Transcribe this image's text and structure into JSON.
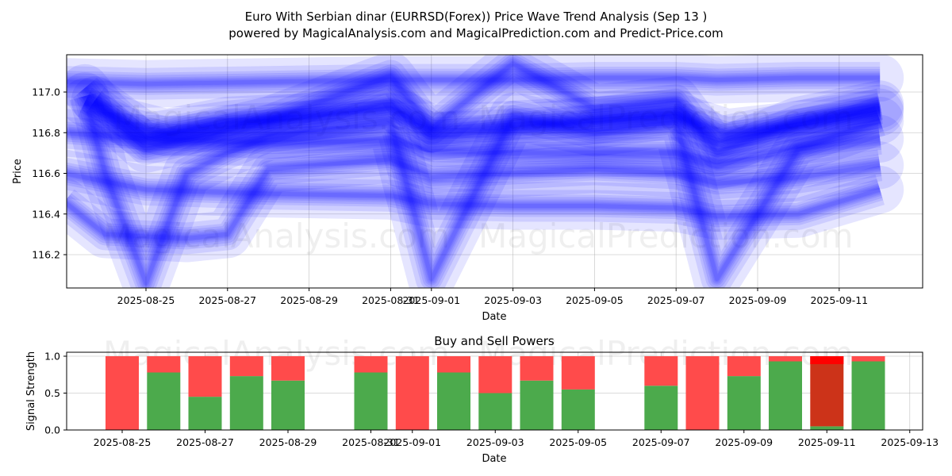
{
  "title": "Euro With Serbian dinar (EURRSD(Forex)) Price Wave Trend Analysis (Sep 13 )",
  "subtitle": "powered by MagicalAnalysis.com and MagicalPrediction.com and Predict-Price.com",
  "watermarks": [
    "MagicalAnalysis.com",
    "MagicalPrediction.com"
  ],
  "colors": {
    "wave": "#0000ff",
    "buy": "#4caa4c",
    "sell": "#ff4b4b",
    "sell_strong": "#ff0000",
    "buy_strong": "#cc3319"
  },
  "chart_data": [
    {
      "type": "line",
      "xlabel": "Date",
      "ylabel": "Price",
      "ylim": [
        116.04,
        117.18
      ],
      "xlim": [
        "2025-08-23",
        "2025-09-13"
      ],
      "grid": true,
      "x_ticks": [
        "2025-08-25",
        "2025-08-27",
        "2025-08-29",
        "2025-08-31",
        "2025-09-01",
        "2025-09-03",
        "2025-09-05",
        "2025-09-07",
        "2025-09-09",
        "2025-09-11"
      ],
      "y_ticks": [
        "116.2",
        "116.4",
        "116.6",
        "116.8",
        "117.0"
      ],
      "series": [
        {
          "x": [
            "2025-08-23T18",
            "2025-08-25",
            "2025-08-27",
            "2025-08-29",
            "2025-08-31",
            "2025-09-01",
            "2025-09-03",
            "2025-09-05",
            "2025-09-07",
            "2025-09-08T06",
            "2025-09-10",
            "2025-09-12"
          ],
          "values": [
            116.96,
            116.78,
            116.84,
            116.88,
            116.92,
            116.82,
            116.84,
            116.86,
            116.88,
            116.8,
            116.84,
            116.9
          ]
        },
        {
          "x": [
            "2025-08-23T12",
            "2025-08-24T12",
            "2025-08-25T12",
            "2025-08-27",
            "2025-08-29",
            "2025-08-31",
            "2025-09-01",
            "2025-09-03",
            "2025-09-05",
            "2025-09-07",
            "2025-09-08",
            "2025-09-10",
            "2025-09-12"
          ],
          "values": [
            116.95,
            116.85,
            116.8,
            116.86,
            116.88,
            116.94,
            116.78,
            116.82,
            116.86,
            116.9,
            116.76,
            116.84,
            116.92
          ]
        },
        {
          "x": [
            "2025-08-23",
            "2025-08-25",
            "2025-08-28",
            "2025-08-31",
            "2025-09-01",
            "2025-09-03",
            "2025-09-05",
            "2025-09-07",
            "2025-09-08",
            "2025-09-10",
            "2025-09-12"
          ],
          "values": [
            117.05,
            117.04,
            117.05,
            117.06,
            117.06,
            117.06,
            117.07,
            117.07,
            117.06,
            117.07,
            117.07
          ]
        },
        {
          "x": [
            "2025-08-23",
            "2025-08-25",
            "2025-08-28",
            "2025-08-31",
            "2025-09-01",
            "2025-09-03",
            "2025-09-05",
            "2025-09-07",
            "2025-09-08",
            "2025-09-10",
            "2025-09-12"
          ],
          "values": [
            116.8,
            116.77,
            116.75,
            116.76,
            116.71,
            116.7,
            116.7,
            116.7,
            116.64,
            116.72,
            116.77
          ]
        },
        {
          "x": [
            "2025-08-23",
            "2025-08-25",
            "2025-08-28",
            "2025-08-31",
            "2025-09-01",
            "2025-09-03",
            "2025-09-05",
            "2025-09-07",
            "2025-09-08",
            "2025-09-10",
            "2025-09-12"
          ],
          "values": [
            116.6,
            116.52,
            116.5,
            116.49,
            116.45,
            116.44,
            116.44,
            116.43,
            116.39,
            116.4,
            116.52
          ]
        },
        {
          "x": [
            "2025-08-23T12",
            "2025-08-24",
            "2025-08-25",
            "2025-08-26",
            "2025-08-27",
            "2025-08-28",
            "2025-08-31",
            "2025-09-01",
            "2025-09-03",
            "2025-09-05",
            "2025-09-07",
            "2025-09-08",
            "2025-09-10",
            "2025-09-12"
          ],
          "values": [
            116.98,
            116.6,
            116.06,
            116.6,
            116.7,
            116.78,
            116.85,
            116.08,
            116.88,
            116.8,
            116.85,
            116.08,
            116.72,
            116.86
          ]
        },
        {
          "x": [
            "2025-08-23",
            "2025-08-24",
            "2025-08-26",
            "2025-08-27",
            "2025-08-28",
            "2025-08-31",
            "2025-09-01",
            "2025-09-03",
            "2025-09-05",
            "2025-09-07",
            "2025-09-08",
            "2025-09-10",
            "2025-09-12"
          ],
          "values": [
            116.46,
            116.3,
            116.28,
            116.3,
            116.62,
            116.67,
            116.58,
            116.6,
            116.62,
            116.6,
            116.55,
            116.58,
            116.64
          ]
        },
        {
          "x": [
            "2025-08-23T12",
            "2025-08-24",
            "2025-08-25",
            "2025-08-28",
            "2025-08-31",
            "2025-09-01",
            "2025-09-03",
            "2025-09-05",
            "2025-09-07",
            "2025-09-08",
            "2025-09-10",
            "2025-09-12"
          ],
          "values": [
            117.02,
            116.9,
            116.72,
            116.86,
            117.08,
            116.82,
            117.14,
            116.92,
            116.96,
            116.7,
            116.86,
            116.94
          ]
        }
      ]
    },
    {
      "type": "bar",
      "title": "Buy and Sell Powers",
      "xlabel": "Date",
      "ylabel": "Signal Strength",
      "ylim": [
        0,
        1.05
      ],
      "grid": true,
      "x_ticks": [
        "2025-08-25",
        "2025-08-27",
        "2025-08-29",
        "2025-08-31",
        "2025-09-01",
        "2025-09-03",
        "2025-09-05",
        "2025-09-07",
        "2025-09-09",
        "2025-09-11",
        "2025-09-13"
      ],
      "y_ticks": [
        "0.0",
        "0.5",
        "1.0"
      ],
      "categories": [
        "2025-08-25",
        "2025-08-26",
        "2025-08-27",
        "2025-08-28",
        "2025-08-29",
        "2025-08-31",
        "2025-09-01",
        "2025-09-02",
        "2025-09-03",
        "2025-09-04",
        "2025-09-05",
        "2025-09-07",
        "2025-09-08",
        "2025-09-09",
        "2025-09-10",
        "2025-09-11",
        "2025-09-12"
      ],
      "series": [
        {
          "name": "Buy",
          "values": [
            0.0,
            0.78,
            0.45,
            0.73,
            0.67,
            0.78,
            0.0,
            0.78,
            0.5,
            0.67,
            0.55,
            0.6,
            0.0,
            0.73,
            0.93,
            0.05,
            0.93
          ]
        },
        {
          "name": "Sell",
          "values": [
            1.0,
            0.22,
            0.55,
            0.27,
            0.33,
            0.22,
            1.0,
            0.22,
            0.5,
            0.33,
            0.45,
            0.4,
            1.0,
            0.27,
            0.07,
            0.95,
            0.07
          ]
        }
      ]
    }
  ]
}
